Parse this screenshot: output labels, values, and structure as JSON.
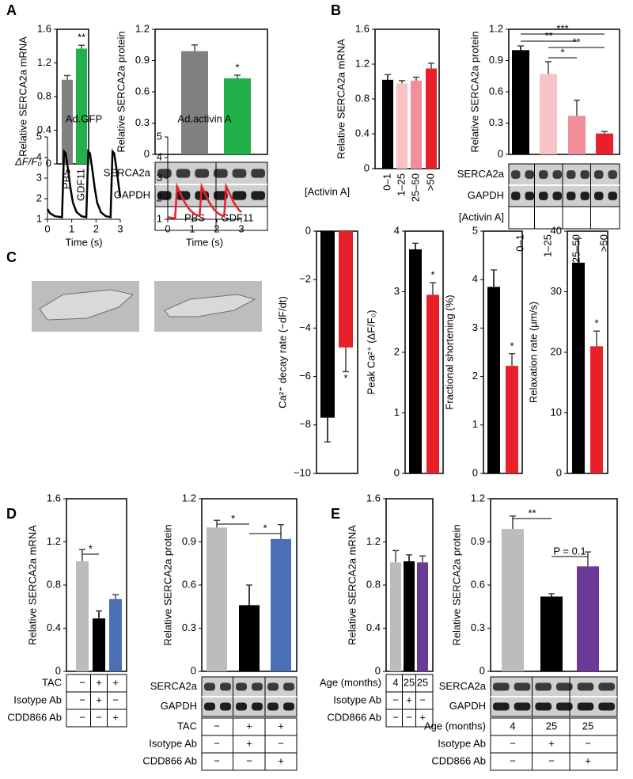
{
  "panel_labels": [
    "A",
    "B",
    "C",
    "D",
    "E"
  ],
  "chart_data": [
    {
      "type": "bar",
      "ylabel": "Relative SERCA2a mRNA",
      "categories": [
        "PBS",
        "GDF11"
      ],
      "values": [
        1.0,
        1.37
      ],
      "errors": [
        0.05,
        0.04
      ],
      "colors": [
        "#808080",
        "#22b04b"
      ],
      "ylim": [
        0,
        1.6
      ],
      "yticks": [
        0,
        0.4,
        0.8,
        1.2,
        1.6
      ],
      "annotations": [
        {
          "text": "**",
          "color": "#000000"
        }
      ]
    },
    {
      "type": "bar",
      "ylabel": "Relative SERCA2a protein",
      "categories": [
        "PBS",
        "GDF11"
      ],
      "values": [
        0.99,
        0.73
      ],
      "errors": [
        0.06,
        0.03
      ],
      "colors": [
        "#808080",
        "#22b04b"
      ],
      "ylim": [
        0,
        1.2
      ],
      "yticks": [
        0,
        0.3,
        0.6,
        0.9,
        1.2
      ],
      "annotations": [
        {
          "text": "*",
          "color": "#000000"
        }
      ],
      "blot_rows": [
        "SERCA2a",
        "GAPDH"
      ]
    },
    {
      "type": "bar",
      "ylabel": "Relative SERCA2a mRNA",
      "xlabel": "[Activin A]",
      "categories": [
        "0–1",
        "1–25",
        "25–50",
        ">50"
      ],
      "values": [
        1.02,
        0.98,
        1.01,
        1.15
      ],
      "errors": [
        0.06,
        0.03,
        0.04,
        0.06
      ],
      "colors": [
        "#000000",
        "#f9c3c6",
        "#f28e9a",
        "#e8202a"
      ],
      "ylim": [
        0,
        1.6
      ],
      "yticks": [
        0,
        0.4,
        0.8,
        1.2,
        1.6
      ]
    },
    {
      "type": "bar",
      "ylabel": "Relative SERCA2a protein",
      "xlabel": "[Activin A]",
      "categories": [
        "0–1",
        "1–25",
        "25–50",
        ">50"
      ],
      "values": [
        1.0,
        0.77,
        0.37,
        0.2
      ],
      "errors": [
        0.04,
        0.12,
        0.15,
        0.02
      ],
      "colors": [
        "#000000",
        "#f9c3c6",
        "#f28e9a",
        "#e8202a"
      ],
      "ylim": [
        0,
        1.2
      ],
      "yticks": [
        0,
        0.3,
        0.6,
        0.9,
        1.2
      ],
      "annotations": [
        {
          "text": "***",
          "color": "#000000"
        },
        {
          "text": "**",
          "color": "#000000"
        },
        {
          "text": "**",
          "color": "#000000"
        },
        {
          "text": "*",
          "color": "#000000"
        }
      ],
      "blot_rows": [
        "SERCA2a",
        "GAPDH"
      ]
    },
    {
      "type": "line",
      "title": "Ad.GFP",
      "xlabel": "Time (s)",
      "ylabel": "ΔF/F₀",
      "color": "#000000",
      "x": [
        0,
        0.1,
        0.3,
        0.6,
        0.68,
        0.75,
        0.85,
        0.95,
        1.05,
        1.2,
        1.4,
        1.6,
        1.68,
        1.75,
        1.85,
        1.95,
        2.05,
        2.2,
        2.4,
        2.6,
        2.68,
        2.75,
        2.85,
        2.95,
        3.0
      ],
      "values": [
        1.5,
        1.3,
        1.15,
        1.1,
        4.3,
        4.2,
        3.4,
        2.5,
        1.8,
        1.35,
        1.15,
        1.1,
        4.3,
        4.2,
        3.4,
        2.5,
        1.8,
        1.35,
        1.15,
        1.1,
        4.3,
        4.2,
        3.4,
        2.5,
        2.1
      ],
      "xlim": [
        0,
        3
      ],
      "ylim": [
        1,
        5
      ],
      "xticks": [
        0,
        1,
        2,
        3
      ],
      "yticks": [
        1,
        2,
        3,
        4,
        5
      ]
    },
    {
      "type": "line",
      "title": "Ad.activin A",
      "xlabel": "Time (s)",
      "color": "#e8202a",
      "x": [
        0,
        0.3,
        0.38,
        0.5,
        0.7,
        0.9,
        1.1,
        1.3,
        1.38,
        1.5,
        1.7,
        1.9,
        2.1,
        2.3,
        2.38,
        2.5,
        2.7,
        2.9,
        3.0
      ],
      "values": [
        1.1,
        1.05,
        2.6,
        2.3,
        1.8,
        1.45,
        1.25,
        1.15,
        2.6,
        2.3,
        1.8,
        1.45,
        1.25,
        1.15,
        2.6,
        2.3,
        1.8,
        1.45,
        1.35
      ],
      "xlim": [
        0,
        3
      ],
      "ylim": [
        1,
        5
      ],
      "xticks": [
        0,
        1,
        2,
        3
      ],
      "yticks": [
        1,
        2,
        3,
        4,
        5
      ]
    },
    {
      "type": "bar",
      "ylabel": "Ca²⁺ decay rate (−dF/dt)",
      "values": [
        -7.7,
        -4.8
      ],
      "errors": [
        1.0,
        1.0
      ],
      "colors": [
        "#000000",
        "#e8202a"
      ],
      "ylim": [
        -10,
        0
      ],
      "yticks": [
        {
          "value": -10,
          "label": "−10"
        },
        {
          "value": -8,
          "label": "−8"
        },
        {
          "value": -6,
          "label": "−6"
        },
        {
          "value": -4,
          "label": "−4"
        },
        {
          "value": -2,
          "label": "−2"
        },
        0
      ],
      "annotations": [
        {
          "text": "*",
          "color": "#000000"
        }
      ]
    },
    {
      "type": "bar",
      "ylabel": "Peak Ca²⁺ (ΔF/F₀)",
      "values": [
        3.7,
        2.95
      ],
      "errors": [
        0.1,
        0.2
      ],
      "colors": [
        "#000000",
        "#e8202a"
      ],
      "ylim": [
        0,
        4
      ],
      "yticks": [
        0,
        1,
        2,
        3,
        4
      ],
      "annotations": [
        {
          "text": "*",
          "color": "#000000"
        }
      ]
    },
    {
      "type": "bar",
      "ylabel": "Fractional shortening (%)",
      "values": [
        3.85,
        2.22
      ],
      "errors": [
        0.35,
        0.25
      ],
      "colors": [
        "#000000",
        "#e8202a"
      ],
      "ylim": [
        0,
        5
      ],
      "yticks": [
        0,
        1,
        2,
        3,
        4,
        5
      ],
      "annotations": [
        {
          "text": "*",
          "color": "#000000"
        }
      ]
    },
    {
      "type": "bar",
      "ylabel": "Relaxation rate (μm/s)",
      "values": [
        34.8,
        21
      ],
      "errors": [
        4,
        2.5
      ],
      "colors": [
        "#000000",
        "#e8202a"
      ],
      "ylim": [
        0,
        40
      ],
      "yticks": [
        0,
        10,
        20,
        30,
        40
      ],
      "annotations": [
        {
          "text": "*",
          "color": "#000000"
        }
      ]
    },
    {
      "type": "bar",
      "ylabel": "Relative SERCA2a mRNA",
      "values": [
        1.02,
        0.49,
        0.67
      ],
      "errors": [
        0.11,
        0.07,
        0.04
      ],
      "colors": [
        "#bcbcbc",
        "#000000",
        "#4a6fb5"
      ],
      "ylim": [
        0,
        1.6
      ],
      "yticks": [
        0,
        0.4,
        0.8,
        1.2,
        1.6
      ],
      "annotations": [
        {
          "text": "*",
          "color": "#000000"
        }
      ],
      "conditions": [
        {
          "label": "TAC",
          "values": [
            "−",
            "+",
            "+"
          ]
        },
        {
          "label": "Isotype Ab",
          "values": [
            "−",
            "+",
            "−"
          ]
        },
        {
          "label": "CDD866 Ab",
          "values": [
            "−",
            "−",
            "+"
          ]
        }
      ]
    },
    {
      "type": "bar",
      "ylabel": "Relative SERCA2a protein",
      "values": [
        1.0,
        0.46,
        0.92
      ],
      "errors": [
        0.05,
        0.14,
        0.1
      ],
      "colors": [
        "#bcbcbc",
        "#000000",
        "#4a6fb5"
      ],
      "ylim": [
        0,
        1.2
      ],
      "yticks": [
        0,
        0.3,
        0.6,
        0.9,
        1.2
      ],
      "annotations": [
        {
          "text": "*",
          "color": "#000000"
        },
        {
          "text": "*",
          "color": "#e02020"
        }
      ],
      "blot_rows": [
        "SERCA2a",
        "GAPDH"
      ],
      "conditions": [
        {
          "label": "TAC",
          "values": [
            "−",
            "+",
            "+"
          ]
        },
        {
          "label": "Isotype Ab",
          "values": [
            "−",
            "+",
            "−"
          ]
        },
        {
          "label": "CDD866 Ab",
          "values": [
            "−",
            "−",
            "+"
          ]
        }
      ]
    },
    {
      "type": "bar",
      "ylabel": "Relative SERCA2a mRNA",
      "values": [
        1.01,
        1.02,
        1.01
      ],
      "errors": [
        0.11,
        0.06,
        0.06
      ],
      "colors": [
        "#bcbcbc",
        "#000000",
        "#6b3a96"
      ],
      "ylim": [
        0,
        1.6
      ],
      "yticks": [
        0,
        0.4,
        0.8,
        1.2,
        1.6
      ],
      "conditions": [
        {
          "label": "Age (months)",
          "values": [
            "4",
            "25",
            "25"
          ]
        },
        {
          "label": "Isotype Ab",
          "values": [
            "−",
            "+",
            "−"
          ]
        },
        {
          "label": "CDD866 Ab",
          "values": [
            "−",
            "−",
            "+"
          ]
        }
      ]
    },
    {
      "type": "bar",
      "ylabel": "Relative SERCA2a protein",
      "values": [
        0.99,
        0.52,
        0.73
      ],
      "errors": [
        0.09,
        0.02,
        0.1
      ],
      "colors": [
        "#bcbcbc",
        "#000000",
        "#6b3a96"
      ],
      "ylim": [
        0,
        1.2
      ],
      "yticks": [
        0,
        0.3,
        0.6,
        0.9,
        1.2
      ],
      "annotations": [
        {
          "text": "**",
          "color": "#000000"
        },
        {
          "text": "P = 0.1",
          "color": "#e02020"
        }
      ],
      "blot_rows": [
        "SERCA2a",
        "GAPDH"
      ],
      "conditions": [
        {
          "label": "Age (months)",
          "values": [
            "4",
            "25",
            "25"
          ]
        },
        {
          "label": "Isotype Ab",
          "values": [
            "−",
            "+",
            "−"
          ]
        },
        {
          "label": "CDD866 Ab",
          "values": [
            "−",
            "−",
            "+"
          ]
        }
      ]
    }
  ]
}
